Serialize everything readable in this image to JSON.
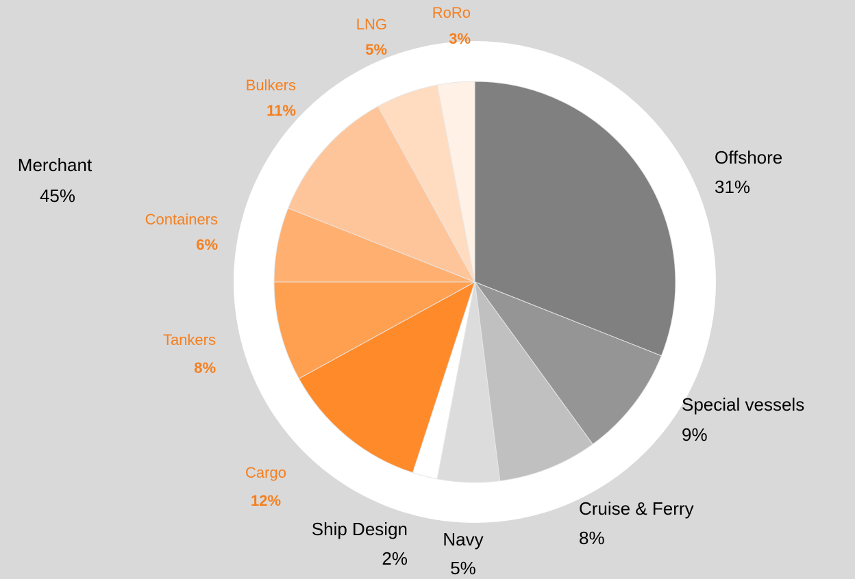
{
  "chart_data": {
    "type": "pie",
    "categories": [
      "Offshore",
      "Special vessels",
      "Cruise & Ferry",
      "Navy",
      "Ship Design",
      "Cargo",
      "Tankers",
      "Containers",
      "Bulkers",
      "LNG",
      "RoRo"
    ],
    "values": [
      31,
      9,
      8,
      5,
      2,
      12,
      8,
      6,
      11,
      5,
      3
    ],
    "value_labels": [
      "31%",
      "9%",
      "8%",
      "5%",
      "2%",
      "12%",
      "8%",
      "6%",
      "11%",
      "5%",
      "3%"
    ],
    "colors": [
      "#808080",
      "#959595",
      "#c0c0c0",
      "#dcdcdc",
      "#ffffff",
      "#ff8a2a",
      "#ffa050",
      "#ffb070",
      "#ffc59a",
      "#ffdcc0",
      "#fff1e6"
    ],
    "label_colors": [
      "#000000",
      "#000000",
      "#000000",
      "#000000",
      "#000000",
      "#f57f1f",
      "#f57f1f",
      "#f57f1f",
      "#f57f1f",
      "#f57f1f",
      "#f57f1f"
    ],
    "group": {
      "name": "Merchant",
      "value": 45,
      "value_label": "45%"
    }
  }
}
